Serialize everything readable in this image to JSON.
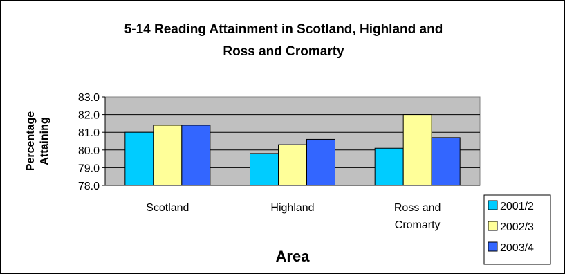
{
  "chart_data": {
    "type": "bar",
    "title_lines": [
      "5-14 Reading Attainment in Scotland, Highland and",
      "Ross and Cromarty"
    ],
    "ylabel_lines": [
      "Percentage",
      "Attaining"
    ],
    "xlabel": "Area",
    "categories": [
      [
        "Scotland"
      ],
      [
        "Highland"
      ],
      [
        "Ross and",
        "Cromarty"
      ]
    ],
    "series": [
      {
        "name": "2001/2",
        "color": "#00CCFF",
        "values": [
          81.0,
          79.8,
          80.1
        ]
      },
      {
        "name": "2002/3",
        "color": "#FFFF99",
        "values": [
          81.4,
          80.3,
          82.0
        ]
      },
      {
        "name": "2003/4",
        "color": "#3366FF",
        "values": [
          81.4,
          80.6,
          80.7
        ]
      }
    ],
    "ylim": [
      78.0,
      83.0
    ],
    "yticks": [
      "78.0",
      "79.0",
      "80.0",
      "81.0",
      "82.0",
      "83.0"
    ],
    "grid": true,
    "plot_background": "#C0C0C0",
    "legend_position": "bottom-right"
  }
}
